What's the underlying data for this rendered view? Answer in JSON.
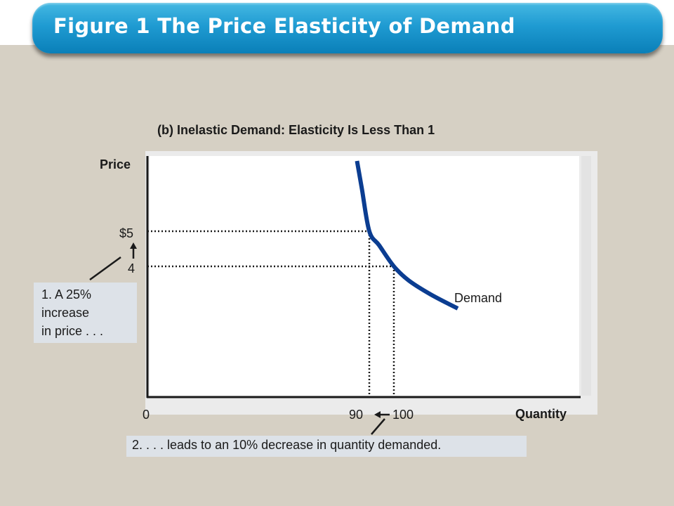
{
  "header": {
    "title": "Figure 1 The Price Elasticity of Demand"
  },
  "colors": {
    "banner": "#1f9bd2",
    "demand_curve": "#0b3d91",
    "background": "#d6d0c4"
  },
  "chart_data": {
    "type": "line",
    "title": "(b) Inelastic Demand: Elasticity Is Less Than 1",
    "xlabel": "Quantity",
    "ylabel": "Price",
    "series": [
      {
        "name": "Demand",
        "x": [
          85,
          87,
          90,
          94,
          100,
          106,
          115,
          126
        ],
        "y": [
          7.0,
          6.2,
          5.0,
          4.6,
          4.0,
          3.6,
          3.2,
          2.8
        ]
      }
    ],
    "points": [
      {
        "x": 90,
        "y": 5
      },
      {
        "x": 100,
        "y": 4
      }
    ],
    "x_ticks": [
      "0",
      "90",
      "100"
    ],
    "y_ticks": [
      "$5",
      "4"
    ],
    "grid": false
  },
  "annotations": {
    "price_change": [
      "1. A 25%",
      "increase",
      "in price . . ."
    ],
    "quantity_change": "2. . . . leads to an 10% decrease in quantity demanded."
  }
}
